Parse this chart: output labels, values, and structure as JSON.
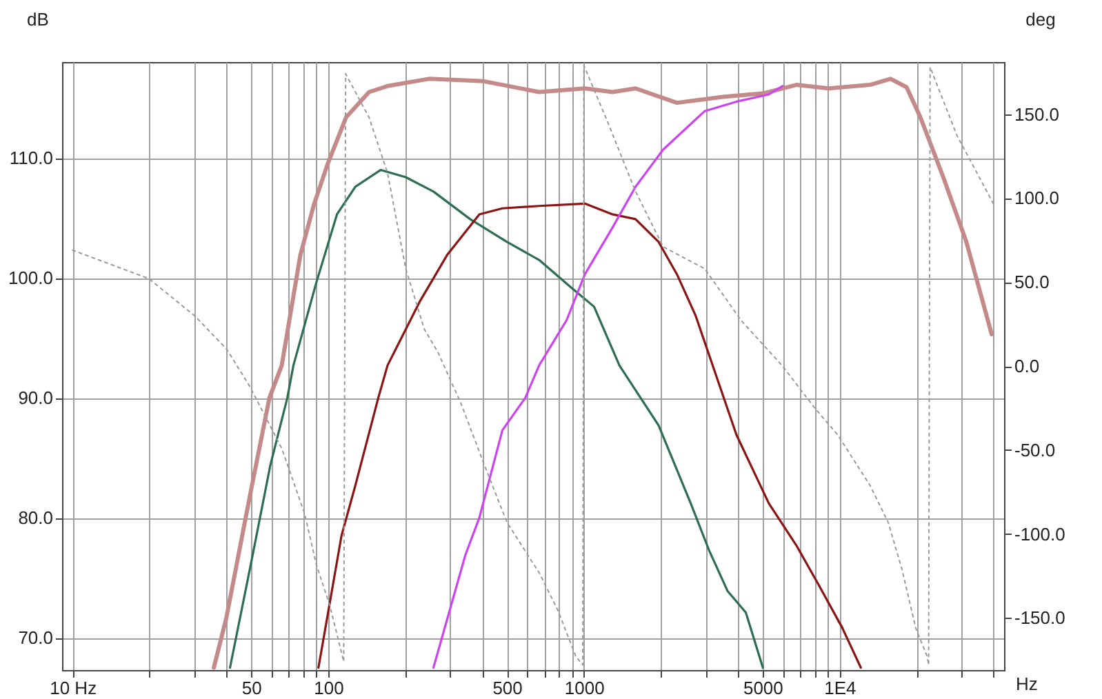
{
  "chart_data": {
    "type": "line",
    "xlabel": "Hz",
    "ylabel": "dB",
    "y2label": "deg",
    "log": "x",
    "grid": true,
    "xlim": [
      9.1,
      44000
    ],
    "ylim": [
      67.3,
      118
    ],
    "y2lim": [
      -181,
      181
    ],
    "xticks": [
      {
        "value": 10,
        "label": "10 Hz"
      },
      {
        "value": 20,
        "label": null
      },
      {
        "value": 30,
        "label": null
      },
      {
        "value": 40,
        "label": null
      },
      50,
      {
        "value": 60,
        "label": null
      },
      {
        "value": 70,
        "label": null
      },
      {
        "value": 80,
        "label": null
      },
      {
        "value": 90,
        "label": null
      },
      100,
      {
        "value": 200,
        "label": null
      },
      {
        "value": 300,
        "label": null
      },
      {
        "value": 400,
        "label": null
      },
      500,
      {
        "value": 600,
        "label": null
      },
      {
        "value": 700,
        "label": null
      },
      {
        "value": 800,
        "label": null
      },
      {
        "value": 900,
        "label": null
      },
      1000,
      {
        "value": 2000,
        "label": null
      },
      {
        "value": 3000,
        "label": null
      },
      {
        "value": 4000,
        "label": null
      },
      5000,
      {
        "value": 6000,
        "label": null
      },
      {
        "value": 7000,
        "label": null
      },
      {
        "value": 8000,
        "label": null
      },
      {
        "value": 9000,
        "label": null
      },
      {
        "value": 10000,
        "label": "1E4"
      },
      {
        "value": 20000,
        "label": null
      },
      {
        "value": 30000,
        "label": null
      },
      {
        "value": 40000,
        "label": null
      }
    ],
    "yticks": [
      {
        "value": 70,
        "label": "70.0"
      },
      {
        "value": 80,
        "label": "80.0"
      },
      {
        "value": 90,
        "label": "90.0"
      },
      {
        "value": 100,
        "label": "100.0"
      },
      {
        "value": 110,
        "label": "110.0"
      }
    ],
    "y2ticks": [
      {
        "value": -150,
        "label": "-150.0"
      },
      {
        "value": -100,
        "label": "-100.0"
      },
      {
        "value": -50,
        "label": "-50.0"
      },
      {
        "value": 0,
        "label": "0.0"
      },
      {
        "value": 50,
        "label": "50.0"
      },
      {
        "value": 100,
        "label": "100.0"
      },
      {
        "value": 150,
        "label": "150.0"
      }
    ],
    "series": [
      {
        "color": "#c48a8a",
        "line_style": "solid",
        "x": [
          35.7,
          39.9,
          49.9,
          58.9,
          65.8,
          77.8,
          87.9,
          99.5,
          117.5,
          144.5,
          170.6,
          247.7,
          406,
          668,
          1009,
          1294,
          1592,
          2312,
          3494,
          5072,
          6774,
          9057,
          13150,
          15830,
          18290,
          20700,
          25450,
          31330,
          39350
        ],
        "values": [
          67.5,
          71.6,
          82.3,
          90.0,
          92.7,
          101.9,
          106.1,
          109.5,
          113.4,
          115.5,
          116.0,
          116.6,
          116.4,
          115.5,
          115.8,
          115.5,
          115.8,
          114.6,
          115.1,
          115.4,
          116.1,
          115.8,
          116.1,
          116.6,
          115.9,
          113.4,
          108.4,
          103.0,
          95.3
        ]
      },
      {
        "color": "#2e6e50",
        "line_style": "solid",
        "x": [
          41.3,
          49.9,
          59.4,
          69.2,
          73.1,
          89.8,
          108.2,
          127.7,
          160.3,
          201,
          258,
          359,
          500,
          668,
          891,
          1096,
          1377,
          1960,
          2617,
          3086,
          3645,
          4299,
          5012
        ],
        "values": [
          67.5,
          76.2,
          84.4,
          90.0,
          92.7,
          99.6,
          105.3,
          107.6,
          109.0,
          108.4,
          107.2,
          104.9,
          103.0,
          101.5,
          99.2,
          97.6,
          92.7,
          87.7,
          81.2,
          77.3,
          73.9,
          72.1,
          67.5
        ]
      },
      {
        "color": "#8b1414",
        "line_style": "solid",
        "x": [
          91.6,
          112.7,
          127.7,
          157,
          170.6,
          227.7,
          291.6,
          390,
          479.6,
          668,
          1009,
          1294,
          1592,
          1960,
          2312,
          2730,
          3155,
          3953,
          5287,
          6774,
          8337,
          10260,
          12110
        ],
        "values": [
          67.5,
          78.5,
          82.7,
          90.0,
          92.7,
          98.0,
          101.9,
          105.3,
          105.8,
          106.0,
          106.2,
          105.3,
          104.9,
          103.0,
          100.3,
          96.9,
          93.0,
          86.9,
          81.2,
          77.7,
          74.3,
          70.8,
          67.5
        ]
      },
      {
        "color": "#cc44ee",
        "line_style": "solid",
        "x": [
          258,
          344,
          390,
          480,
          590,
          668,
          857,
          1009,
          1294,
          1592,
          2042,
          2966,
          3953,
          5287,
          5984
        ],
        "values": [
          67.5,
          76.9,
          80.0,
          87.3,
          90.0,
          92.7,
          96.5,
          100.3,
          104.2,
          107.6,
          110.7,
          113.9,
          114.7,
          115.3,
          116.0
        ]
      },
      {
        "color": "#999999",
        "line_style": "dotted",
        "axis": "y2",
        "x": [
          10,
          19.9,
          30,
          40.1,
          49.3,
          65.8,
          80.9,
          89.8,
          101.6,
          115,
          117,
          144.5,
          170.6,
          201,
          237.6,
          269,
          330,
          406,
          500,
          668,
          789,
          931,
          990,
          1000,
          1241,
          1592,
          2042,
          2966,
          4130,
          5984,
          7998,
          9840,
          13150,
          15490,
          17540,
          19860,
          22030,
          22300,
          22600,
          28840,
          40180
        ],
        "values": [
          69,
          52,
          30,
          10,
          -12,
          -49,
          -88,
          -118,
          -143,
          -176,
          174,
          148,
          115,
          58,
          22,
          8,
          -22,
          -58,
          -93,
          -123,
          -145,
          -173,
          -178,
          179,
          145,
          104,
          71,
          58,
          27,
          0,
          -25,
          -41,
          -71,
          -93,
          -121,
          -156,
          -173,
          -178,
          178,
          137,
          96
        ]
      }
    ]
  }
}
